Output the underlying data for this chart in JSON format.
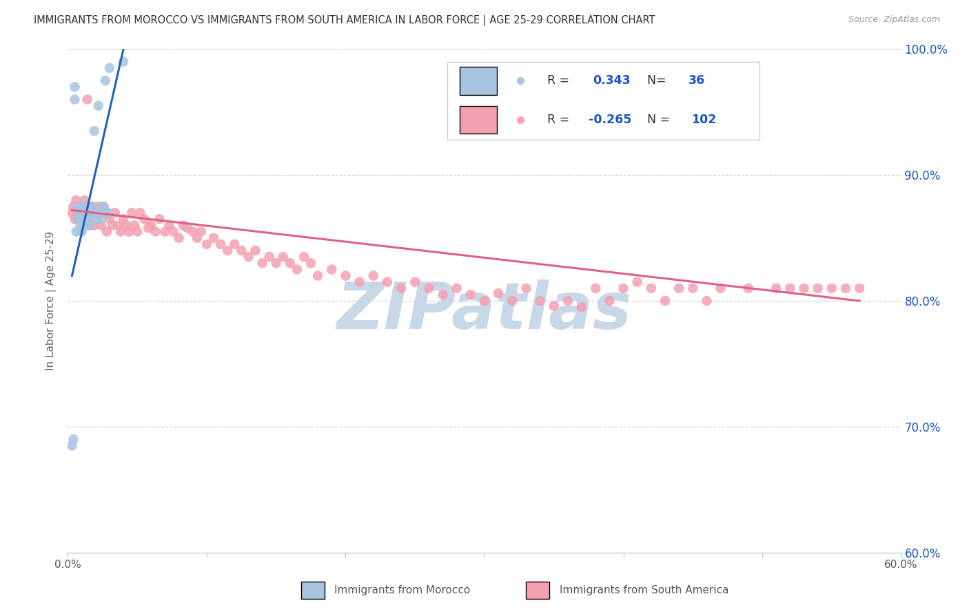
{
  "title": "IMMIGRANTS FROM MOROCCO VS IMMIGRANTS FROM SOUTH AMERICA IN LABOR FORCE | AGE 25-29 CORRELATION CHART",
  "source": "Source: ZipAtlas.com",
  "ylabel": "In Labor Force | Age 25-29",
  "xlim": [
    0.0,
    0.6
  ],
  "ylim": [
    0.6,
    1.0
  ],
  "xticks": [
    0.0,
    0.1,
    0.2,
    0.3,
    0.4,
    0.5,
    0.6
  ],
  "xticklabels": [
    "0.0%",
    "",
    "",
    "",
    "",
    "",
    "60.0%"
  ],
  "yticks": [
    0.6,
    0.7,
    0.8,
    0.9,
    1.0
  ],
  "yticklabels": [
    "60.0%",
    "70.0%",
    "80.0%",
    "90.0%",
    "100.0%"
  ],
  "morocco_R": 0.343,
  "morocco_N": 36,
  "sa_R": -0.265,
  "sa_N": 102,
  "morocco_color": "#a8c4e0",
  "sa_color": "#f4a0b0",
  "morocco_line_color": "#2060c0",
  "sa_line_color": "#e06080",
  "legend_R_color": "#1a52cc",
  "watermark": "ZIPatlas",
  "watermark_color": "#c8d8e8",
  "background_color": "#ffffff",
  "grid_color": "#c8c8c8",
  "morocco_x": [
    0.003,
    0.004,
    0.005,
    0.005,
    0.006,
    0.007,
    0.007,
    0.008,
    0.009,
    0.01,
    0.01,
    0.011,
    0.011,
    0.012,
    0.012,
    0.013,
    0.013,
    0.014,
    0.015,
    0.015,
    0.016,
    0.017,
    0.018,
    0.019,
    0.02,
    0.021,
    0.022,
    0.023,
    0.024,
    0.025,
    0.026,
    0.027,
    0.028,
    0.029,
    0.03,
    0.04
  ],
  "morocco_y": [
    0.685,
    0.69,
    0.96,
    0.97,
    0.855,
    0.865,
    0.875,
    0.87,
    0.86,
    0.855,
    0.87,
    0.865,
    0.875,
    0.86,
    0.865,
    0.87,
    0.865,
    0.875,
    0.86,
    0.865,
    0.87,
    0.875,
    0.87,
    0.935,
    0.87,
    0.865,
    0.955,
    0.87,
    0.865,
    0.875,
    0.87,
    0.975,
    0.87,
    0.87,
    0.985,
    0.99
  ],
  "sa_x": [
    0.003,
    0.004,
    0.005,
    0.006,
    0.007,
    0.008,
    0.009,
    0.01,
    0.011,
    0.012,
    0.013,
    0.014,
    0.015,
    0.016,
    0.017,
    0.018,
    0.019,
    0.02,
    0.022,
    0.024,
    0.026,
    0.028,
    0.03,
    0.032,
    0.034,
    0.036,
    0.038,
    0.04,
    0.042,
    0.044,
    0.046,
    0.048,
    0.05,
    0.052,
    0.055,
    0.058,
    0.06,
    0.063,
    0.066,
    0.07,
    0.073,
    0.076,
    0.08,
    0.083,
    0.086,
    0.09,
    0.093,
    0.096,
    0.1,
    0.105,
    0.11,
    0.115,
    0.12,
    0.125,
    0.13,
    0.135,
    0.14,
    0.145,
    0.15,
    0.155,
    0.16,
    0.165,
    0.17,
    0.175,
    0.18,
    0.19,
    0.2,
    0.21,
    0.22,
    0.23,
    0.24,
    0.25,
    0.26,
    0.27,
    0.28,
    0.29,
    0.3,
    0.31,
    0.32,
    0.33,
    0.34,
    0.35,
    0.36,
    0.37,
    0.38,
    0.39,
    0.4,
    0.41,
    0.42,
    0.43,
    0.44,
    0.45,
    0.46,
    0.47,
    0.49,
    0.51,
    0.52,
    0.53,
    0.54,
    0.55,
    0.56,
    0.57
  ],
  "sa_y": [
    0.87,
    0.875,
    0.865,
    0.88,
    0.87,
    0.865,
    0.875,
    0.87,
    0.875,
    0.88,
    0.87,
    0.96,
    0.875,
    0.86,
    0.87,
    0.875,
    0.86,
    0.87,
    0.875,
    0.86,
    0.875,
    0.855,
    0.865,
    0.86,
    0.87,
    0.86,
    0.855,
    0.865,
    0.86,
    0.855,
    0.87,
    0.86,
    0.855,
    0.87,
    0.865,
    0.858,
    0.86,
    0.855,
    0.865,
    0.855,
    0.86,
    0.855,
    0.85,
    0.86,
    0.858,
    0.855,
    0.85,
    0.855,
    0.845,
    0.85,
    0.845,
    0.84,
    0.845,
    0.84,
    0.835,
    0.84,
    0.83,
    0.835,
    0.83,
    0.835,
    0.83,
    0.825,
    0.835,
    0.83,
    0.82,
    0.825,
    0.82,
    0.815,
    0.82,
    0.815,
    0.81,
    0.815,
    0.81,
    0.805,
    0.81,
    0.805,
    0.8,
    0.806,
    0.8,
    0.81,
    0.8,
    0.796,
    0.8,
    0.795,
    0.81,
    0.8,
    0.81,
    0.815,
    0.81,
    0.8,
    0.81,
    0.81,
    0.8,
    0.81,
    0.81,
    0.81,
    0.81,
    0.81,
    0.81,
    0.81,
    0.81,
    0.81
  ],
  "morocco_trend_x": [
    0.003,
    0.04
  ],
  "morocco_trend_y": [
    0.82,
    1.0
  ],
  "sa_trend_x": [
    0.003,
    0.57
  ],
  "sa_trend_y": [
    0.872,
    0.8
  ]
}
